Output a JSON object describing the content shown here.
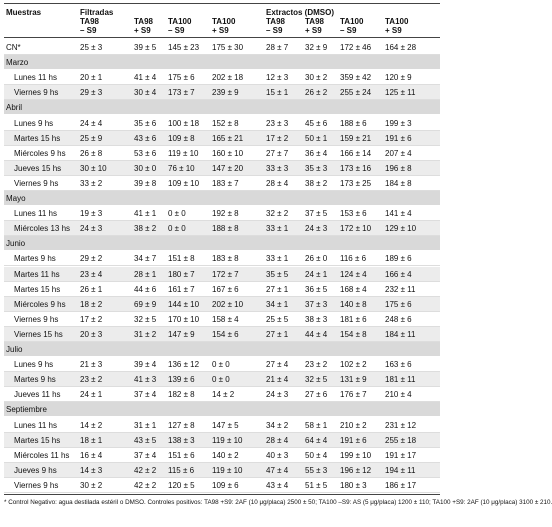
{
  "table": {
    "header": {
      "first": "Muestras",
      "groups": [
        {
          "label": "Filtradas",
          "columns": [
            {
              "strain": "TA98",
              "s9": "– S9"
            },
            {
              "strain": "TA98",
              "s9": "+ S9"
            },
            {
              "strain": "TA100",
              "s9": "– S9"
            },
            {
              "strain": "TA100",
              "s9": "+ S9"
            }
          ]
        },
        {
          "label": "Extractos (DMSO)",
          "columns": [
            {
              "strain": "TA98",
              "s9": "– S9"
            },
            {
              "strain": "TA98",
              "s9": "+ S9"
            },
            {
              "strain": "TA100",
              "s9": "– S9"
            },
            {
              "strain": "TA100",
              "s9": "+ S9"
            }
          ]
        }
      ]
    },
    "control": {
      "label": "CN*",
      "cells": [
        "25 ± 3",
        "39 ± 5",
        "145 ± 23",
        "175 ± 30",
        "28 ± 7",
        "32 ± 9",
        "172 ± 46",
        "164 ± 28"
      ]
    },
    "sections": [
      {
        "title": "Marzo",
        "rows": [
          {
            "label": "Lunes 11 hs",
            "cells": [
              "20 ± 1",
              "41 ± 4",
              "175 ± 6",
              "202 ± 18",
              "12 ± 3",
              "30 ± 2",
              "359 ± 42",
              "120 ± 9"
            ]
          },
          {
            "label": "Viernes 9 hs",
            "cells": [
              "29 ± 3",
              "30 ± 4",
              "173 ± 7",
              "239 ± 9",
              "15 ± 1",
              "26 ± 2",
              "255 ± 24",
              "125 ± 11"
            ]
          }
        ]
      },
      {
        "title": "Abril",
        "rows": [
          {
            "label": "Lunes 9 hs",
            "cells": [
              "24 ± 4",
              "35 ± 6",
              "100 ± 18",
              "152 ± 8",
              "23 ± 3",
              "45 ± 6",
              "188 ± 6",
              "199 ± 3"
            ]
          },
          {
            "label": "Martes 15 hs",
            "cells": [
              "25 ± 9",
              "43 ± 6",
              "109 ± 8",
              "165 ± 21",
              "17 ± 2",
              "50 ± 1",
              "159 ± 21",
              "191 ± 6"
            ]
          },
          {
            "label": "Miércoles 9 hs",
            "cells": [
              "26 ± 8",
              "53 ± 6",
              "119 ± 10",
              "160 ± 10",
              "27 ± 7",
              "36 ± 4",
              "166 ± 14",
              "207 ± 4"
            ]
          },
          {
            "label": "Jueves 15 hs",
            "cells": [
              "30 ± 10",
              "30 ± 0",
              "76 ± 10",
              "147 ± 20",
              "33 ± 3",
              "35 ± 3",
              "173 ± 16",
              "196 ± 8"
            ]
          },
          {
            "label": "Viernes 9 hs",
            "cells": [
              "33 ± 2",
              "39 ± 8",
              "109 ± 10",
              "183 ± 7",
              "28 ± 4",
              "38 ± 2",
              "173 ± 25",
              "184 ± 8"
            ]
          }
        ]
      },
      {
        "title": "Mayo",
        "rows": [
          {
            "label": "Lunes 11 hs",
            "cells": [
              "19 ± 3",
              "41 ± 1",
              "0 ± 0",
              "192 ± 8",
              "32 ± 2",
              "37 ± 5",
              "153 ± 6",
              "141 ± 4"
            ]
          },
          {
            "label": "Miércoles 13 hs",
            "cells": [
              "24 ± 3",
              "38 ± 2",
              "0 ± 0",
              "188 ± 8",
              "33 ± 1",
              "24 ± 3",
              "172 ± 10",
              "129 ± 10"
            ]
          }
        ]
      },
      {
        "title": "Junio",
        "rows": [
          {
            "label": "Martes 9 hs",
            "cells": [
              "29 ± 2",
              "34 ± 7",
              "151 ± 8",
              "183 ± 8",
              "33 ± 1",
              "26 ± 0",
              "116 ± 6",
              "189 ± 6"
            ]
          },
          {
            "label": "Martes 11 hs",
            "cells": [
              "23 ± 4",
              "28 ± 1",
              "180 ± 7",
              "172 ± 7",
              "35 ± 5",
              "24 ± 1",
              "124 ± 4",
              "166 ± 4"
            ]
          },
          {
            "label": "Martes 15 hs",
            "cells": [
              "26 ± 1",
              "44 ± 6",
              "161 ± 7",
              "167 ± 6",
              "27 ± 1",
              "36 ± 5",
              "168 ± 4",
              "232 ± 11"
            ]
          },
          {
            "label": "Miércoles 9 hs",
            "cells": [
              "18 ± 2",
              "69 ± 9",
              "144 ± 10",
              "202 ± 10",
              "34 ± 1",
              "37 ± 3",
              "140 ± 8",
              "175 ± 6"
            ]
          },
          {
            "label": "Viernes 9 hs",
            "cells": [
              "17 ± 2",
              "32 ± 5",
              "170 ± 10",
              "158 ± 4",
              "25 ± 5",
              "38 ± 3",
              "181 ± 6",
              "248 ± 6"
            ]
          },
          {
            "label": "Viernes 15 hs",
            "cells": [
              "20 ± 3",
              "31 ± 2",
              "147 ± 9",
              "154 ± 6",
              "27 ± 1",
              "44 ± 4",
              "154 ± 8",
              "184 ± 11"
            ]
          }
        ]
      },
      {
        "title": "Julio",
        "rows": [
          {
            "label": "Lunes 9 hs",
            "cells": [
              "21 ± 3",
              "39 ± 4",
              "136 ± 12",
              "0 ± 0",
              "27 ± 4",
              "23 ± 2",
              "102 ± 2",
              "163 ± 6"
            ]
          },
          {
            "label": "Martes 9 hs",
            "cells": [
              "23 ± 2",
              "41 ± 3",
              "139 ± 6",
              "0 ± 0",
              "21 ± 4",
              "32 ± 5",
              "131 ± 9",
              "181 ± 11"
            ]
          },
          {
            "label": "Jueves 11 hs",
            "cells": [
              "24 ± 1",
              "37 ± 4",
              "182 ± 8",
              "14 ± 2",
              "24 ± 3",
              "27 ± 6",
              "176 ± 7",
              "210 ± 4"
            ]
          }
        ]
      },
      {
        "title": "Septiembre",
        "rows": [
          {
            "label": "Lunes 11 hs",
            "cells": [
              "14 ± 2",
              "31 ± 1",
              "127 ± 8",
              "147 ± 5",
              "34 ± 2",
              "58 ± 1",
              "210 ± 2",
              "231 ± 12"
            ]
          },
          {
            "label": "Martes 15 hs",
            "cells": [
              "18 ± 1",
              "43 ± 5",
              "138 ± 3",
              "119 ± 10",
              "28 ± 4",
              "64 ± 4",
              "191 ± 6",
              "255 ± 18"
            ]
          },
          {
            "label": "Miércoles 11 hs",
            "cells": [
              "16 ± 4",
              "37 ± 4",
              "151 ± 6",
              "140 ± 2",
              "40 ± 3",
              "50 ± 4",
              "199 ± 10",
              "191 ± 17"
            ]
          },
          {
            "label": "Jueves 9 hs",
            "cells": [
              "14 ± 3",
              "42 ± 2",
              "115 ± 6",
              "119 ± 10",
              "47 ± 4",
              "55 ± 3",
              "196 ± 12",
              "194 ± 11"
            ]
          },
          {
            "label": "Viernes 9 hs",
            "cells": [
              "30 ± 2",
              "42 ± 2",
              "120 ± 5",
              "109 ± 6",
              "43 ± 4",
              "51 ± 5",
              "180 ± 3",
              "186 ± 17"
            ]
          }
        ]
      }
    ],
    "footnote": "* Control Negativo: agua destilada estéril o DMSO. Controles positivos: TA98 +S9: 2AF (10 μg/placa) 2500 ± 50; TA100 –S9: AS (5 μg/placa) 1200 ± 110; TA100 +S9: 2AF (10 μg/placa) 3100 ± 210."
  }
}
